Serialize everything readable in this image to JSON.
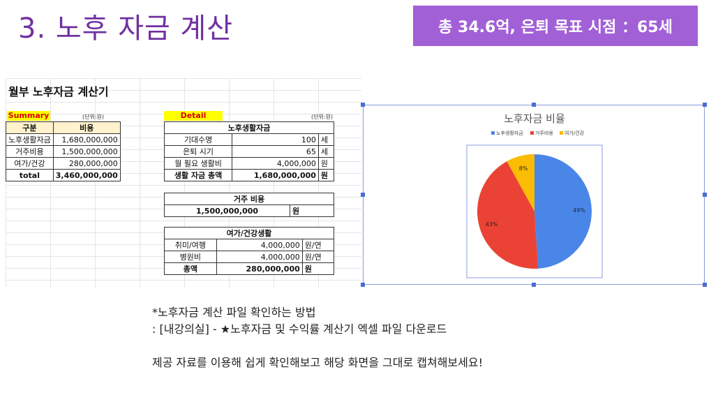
{
  "slide": {
    "title": "3. 노후 자금 계산",
    "badge": "총 34.6억, 은퇴 목표 시점 ：65세"
  },
  "sheet": {
    "title": "월부 노후자금 계산기",
    "summary": {
      "tag": "Summary",
      "unit": "(단위:원)",
      "headers": [
        "구분",
        "비용"
      ],
      "rows": [
        {
          "label": "노후생활자금",
          "value": "1,680,000,000"
        },
        {
          "label": "거주비용",
          "value": "1,500,000,000"
        },
        {
          "label": "여가/건강",
          "value": "280,000,000"
        }
      ],
      "total_label": "total",
      "total_value": "3,460,000,000"
    },
    "detail": {
      "tag": "Detail",
      "unit": "(단위:원)",
      "living": {
        "header": "노후생활자금",
        "rows": [
          {
            "label": "기대수명",
            "value": "100",
            "unit": "세"
          },
          {
            "label": "은퇴 시기",
            "value": "65",
            "unit": "세"
          },
          {
            "label": "월 필요 생활비",
            "value": "4,000,000",
            "unit": "원"
          },
          {
            "label": "생활 자금 총액",
            "value": "1,680,000,000",
            "unit": "원"
          }
        ]
      },
      "housing": {
        "header": "거주 비용",
        "value": "1,500,000,000",
        "unit": "원"
      },
      "leisure": {
        "header": "여가/건강생활",
        "rows": [
          {
            "label": "취미/여행",
            "value": "4,000,000",
            "unit": "원/연"
          },
          {
            "label": "병원비",
            "value": "4,000,000",
            "unit": "원/연"
          },
          {
            "label": "총액",
            "value": "280,000,000",
            "unit": "원"
          }
        ]
      }
    }
  },
  "chart_data": {
    "type": "pie",
    "title": "노후자금 비율",
    "legend_position": "top",
    "categories": [
      "노후생활자금",
      "거주비용",
      "여가/건강"
    ],
    "values": [
      49,
      43,
      8
    ],
    "labels": [
      "49%",
      "43%",
      "8%"
    ],
    "colors": [
      "#4a86e8",
      "#ea4335",
      "#fbbc04"
    ]
  },
  "notes": {
    "line1": "*노후자금 계산 파일 확인하는 방법",
    "line2": ": [내강의실] - ★노후자금 및 수익률 계산기 엑셀 파일 다운로드",
    "line3": "제공 자료를 이용해 쉽게 확인해보고 해당 화면을 그대로 캡쳐해보세요!"
  }
}
